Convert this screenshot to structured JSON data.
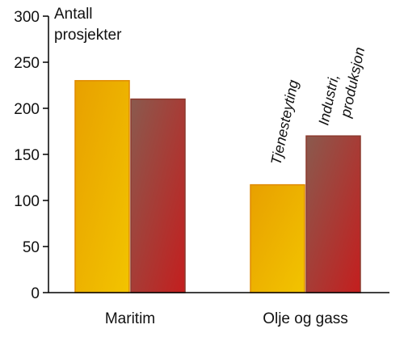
{
  "chart_data": {
    "type": "bar",
    "title": "",
    "ylabel_lines": [
      "Antall",
      "prosjekter"
    ],
    "xlabel": "",
    "categories": [
      "Maritim",
      "Olje og gass"
    ],
    "series": [
      {
        "name": "Tjenesteyting",
        "values": [
          230,
          117
        ]
      },
      {
        "name": "Industri, produksjon",
        "values": [
          210,
          170
        ]
      }
    ],
    "series_label_lines": [
      [
        "Tjenesteyting"
      ],
      [
        "Industri,",
        "produksjon"
      ]
    ],
    "ylim": [
      0,
      300
    ],
    "yticks": [
      0,
      50,
      100,
      150,
      200,
      250,
      300
    ],
    "legend": "none",
    "series_labels_placement": "rotated text above bars in second category",
    "colors": {
      "series0_top": "#f2c400",
      "series0_bottom": "#e8a000",
      "series0_border": "#e08a00",
      "series1_top": "#8a5a4e",
      "series1_bottom": "#c41e1e",
      "series1_border": "#8c3a2e",
      "axis": "#000000"
    }
  }
}
